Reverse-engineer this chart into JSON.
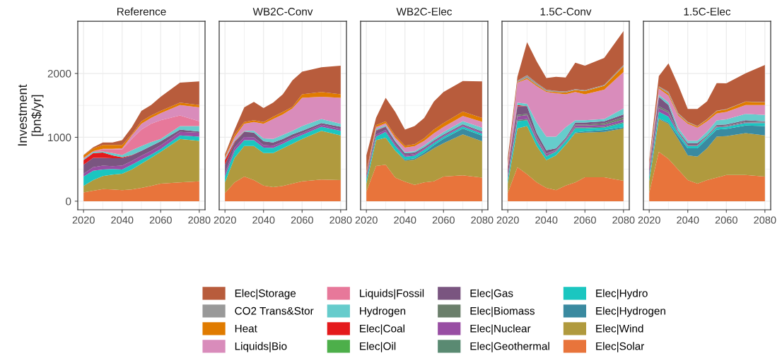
{
  "chart_data": [
    {
      "type": "area",
      "stacked": true,
      "title": "Reference",
      "ylabel": "Investment\n[bn$/yr]",
      "legend": "bottom",
      "grid": true,
      "xlim": [
        2017,
        2083
      ],
      "xticks": [
        2020,
        2040,
        2060,
        2080
      ],
      "ylim": [
        -134,
        2819
      ],
      "yticks": [
        0,
        1000,
        2000
      ],
      "x": [
        2020,
        2025,
        2030,
        2035,
        2040,
        2045,
        2050,
        2055,
        2060,
        2070,
        2080
      ],
      "series": [
        {
          "name": "Elec|Solar",
          "color": "#e8743b",
          "values": [
            136,
            165,
            190,
            184,
            173,
            184,
            210,
            240,
            276,
            294,
            312
          ]
        },
        {
          "name": "Elec|Wind",
          "color": "#b09a3e",
          "values": [
            103,
            166,
            203,
            231,
            257,
            312,
            378,
            440,
            496,
            680,
            633
          ]
        },
        {
          "name": "Elec|Hydro",
          "color": "#1bc6c0",
          "values": [
            147,
            147,
            103,
            89,
            66,
            74,
            63,
            48,
            44,
            55,
            66
          ]
        },
        {
          "name": "Elec|Nuclear",
          "color": "#984ea3",
          "values": [
            45,
            55,
            60,
            45,
            60,
            60,
            60,
            60,
            60,
            55,
            60
          ]
        },
        {
          "name": "Elec|Gas",
          "color": "#7a5580",
          "values": [
            139,
            147,
            124,
            124,
            117,
            87,
            79,
            76,
            62,
            37,
            21
          ]
        },
        {
          "name": "Elec|Oil",
          "color": "#4daf4a",
          "values": [
            null,
            null,
            null,
            null,
            null,
            null,
            null,
            null,
            null,
            null,
            null
          ]
        },
        {
          "name": "Elec|Coal",
          "color": "#e41a1c",
          "values": [
            73,
            74,
            81,
            44,
            15,
            5,
            0,
            0,
            0,
            0,
            0
          ]
        },
        {
          "name": "Hydrogen",
          "color": "#66cccc",
          "values": [
            19,
            18,
            18,
            37,
            36,
            76,
            74,
            62,
            36,
            55,
            84
          ]
        },
        {
          "name": "Liquids|Fossil",
          "color": "#e7789a",
          "values": [
            18,
            11,
            30,
            55,
            85,
            176,
            257,
            287,
            294,
            166,
            74
          ]
        },
        {
          "name": "Liquids|Bio",
          "color": "#d98cbb",
          "values": [
            0,
            0,
            11,
            11,
            18,
            55,
            92,
            92,
            111,
            165,
            221
          ]
        },
        {
          "name": "Heat",
          "color": "#e07b00",
          "values": [
            37,
            44,
            62,
            62,
            55,
            18,
            37,
            37,
            36,
            37,
            36
          ]
        },
        {
          "name": "Elec|Storage",
          "color": "#b85c3c",
          "values": [
            7,
            19,
            37,
            37,
            74,
            111,
            165,
            165,
            221,
            313,
            368
          ]
        }
      ]
    },
    {
      "type": "area",
      "stacked": true,
      "title": "WB2C-Conv",
      "tick_labels": "x",
      "legend": "bottom",
      "grid": true,
      "xlim": [
        2017,
        2083
      ],
      "xticks": [
        2020,
        2040,
        2060,
        2080
      ],
      "ylim": [
        -134,
        2819
      ],
      "yticks": [
        0,
        1000,
        2000
      ],
      "x": [
        2020,
        2025,
        2030,
        2035,
        2040,
        2045,
        2050,
        2055,
        2060,
        2070,
        2080
      ],
      "series": [
        {
          "name": "Elec|Solar",
          "color": "#e8743b",
          "values": [
            129,
            294,
            386,
            331,
            246,
            221,
            239,
            276,
            312,
            338,
            331
          ]
        },
        {
          "name": "Elec|Wind",
          "color": "#b09a3e",
          "values": [
            165,
            386,
            478,
            533,
            508,
            533,
            588,
            625,
            662,
            765,
            698
          ]
        },
        {
          "name": "Elec|Hydro",
          "color": "#1bc6c0",
          "values": [
            92,
            110,
            92,
            92,
            84,
            81,
            74,
            73,
            63,
            62,
            74
          ]
        },
        {
          "name": "Elec|Nuclear",
          "color": "#984ea3",
          "values": [
            50,
            50,
            50,
            45,
            40,
            35,
            30,
            30,
            30,
            30,
            30
          ]
        },
        {
          "name": "Elec|Gas",
          "color": "#7a5580",
          "values": [
            134,
            79,
            79,
            73,
            60,
            49,
            43,
            44,
            36,
            29,
            32
          ]
        },
        {
          "name": "Elec|Coal",
          "color": "#e41a1c",
          "values": [
            73,
            18,
            5,
            0,
            0,
            0,
            0,
            0,
            0,
            0,
            0
          ]
        },
        {
          "name": "Hydrogen",
          "color": "#66cccc",
          "values": [
            18,
            19,
            13,
            29,
            44,
            55,
            63,
            55,
            73,
            63,
            48
          ]
        },
        {
          "name": "Liquids|Bio",
          "color": "#d98cbb",
          "values": [
            19,
            48,
            110,
            136,
            231,
            313,
            323,
            349,
            442,
            349,
            405
          ]
        },
        {
          "name": "Heat",
          "color": "#e07b00",
          "values": [
            19,
            44,
            26,
            29,
            26,
            37,
            37,
            26,
            55,
            74,
            55
          ]
        },
        {
          "name": "Elec|Storage",
          "color": "#b85c3c",
          "values": [
            36,
            73,
            232,
            287,
            221,
            220,
            276,
            415,
            356,
            386,
            448
          ]
        }
      ]
    },
    {
      "type": "area",
      "stacked": true,
      "title": "WB2C-Elec",
      "tick_labels": "x",
      "legend": "bottom",
      "grid": true,
      "xlim": [
        2017,
        2083
      ],
      "xticks": [
        2020,
        2040,
        2060,
        2080
      ],
      "ylim": [
        -134,
        2819
      ],
      "yticks": [
        0,
        1000,
        2000
      ],
      "x": [
        2020,
        2025,
        2030,
        2035,
        2040,
        2045,
        2050,
        2055,
        2060,
        2070,
        2080
      ],
      "series": [
        {
          "name": "Elec|Solar",
          "color": "#e8743b",
          "values": [
            150,
            551,
            570,
            368,
            305,
            257,
            294,
            312,
            386,
            404,
            368
          ]
        },
        {
          "name": "Elec|Wind",
          "color": "#b09a3e",
          "values": [
            126,
            405,
            423,
            422,
            331,
            394,
            441,
            515,
            522,
            644,
            570
          ]
        },
        {
          "name": "Elec|Hydrogen",
          "color": "#3a8aa0",
          "values": [
            0,
            0,
            0,
            0,
            15,
            20,
            30,
            50,
            70,
            90,
            90
          ]
        },
        {
          "name": "Elec|Hydro",
          "color": "#1bc6c0",
          "values": [
            73,
            55,
            92,
            74,
            44,
            40,
            40,
            35,
            30,
            30,
            30
          ]
        },
        {
          "name": "Elec|Nuclear",
          "color": "#984ea3",
          "values": [
            30,
            30,
            30,
            30,
            25,
            25,
            20,
            20,
            20,
            20,
            20
          ]
        },
        {
          "name": "Elec|Gas",
          "color": "#7a5580",
          "values": [
            30,
            60,
            50,
            40,
            30,
            25,
            20,
            20,
            15,
            15,
            15
          ]
        },
        {
          "name": "Elec|Coal",
          "color": "#e41a1c",
          "values": [
            30,
            10,
            5,
            0,
            0,
            0,
            0,
            0,
            0,
            0,
            0
          ]
        },
        {
          "name": "Hydrogen",
          "color": "#66cccc",
          "values": [
            10,
            20,
            20,
            20,
            20,
            20,
            30,
            30,
            40,
            50,
            60
          ]
        },
        {
          "name": "Liquids|Bio",
          "color": "#d98cbb",
          "values": [
            0,
            30,
            30,
            40,
            70,
            80,
            70,
            80,
            80,
            80,
            90
          ]
        },
        {
          "name": "Heat",
          "color": "#e07b00",
          "values": [
            10,
            30,
            30,
            30,
            30,
            30,
            40,
            60,
            60,
            70,
            60
          ]
        },
        {
          "name": "Elec|Storage",
          "color": "#b85c3c",
          "values": [
            258,
            114,
            368,
            373,
            251,
            285,
            320,
            440,
            487,
            479,
            572
          ]
        }
      ]
    },
    {
      "type": "area",
      "stacked": true,
      "title": "1.5C-Conv",
      "tick_labels": "x",
      "legend": "bottom",
      "grid": true,
      "xlim": [
        2017,
        2083
      ],
      "xticks": [
        2020,
        2040,
        2060,
        2080
      ],
      "ylim": [
        -134,
        2819
      ],
      "yticks": [
        0,
        1000,
        2000
      ],
      "x": [
        2020,
        2025,
        2030,
        2035,
        2040,
        2045,
        2050,
        2055,
        2060,
        2070,
        2080
      ],
      "series": [
        {
          "name": "Elec|Solar",
          "color": "#e8743b",
          "values": [
            130,
            533,
            423,
            294,
            210,
            173,
            246,
            294,
            375,
            375,
            320
          ]
        },
        {
          "name": "Elec|Wind",
          "color": "#b09a3e",
          "values": [
            146,
            607,
            753,
            570,
            433,
            544,
            636,
            772,
            699,
            710,
            820
          ]
        },
        {
          "name": "Elec|Hydrogen",
          "color": "#3a8aa0",
          "values": [
            0,
            0,
            0,
            0,
            0,
            0,
            5,
            10,
            20,
            30,
            20
          ]
        },
        {
          "name": "Elec|Hydro",
          "color": "#1bc6c0",
          "values": [
            73,
            110,
            92,
            74,
            56,
            55,
            51,
            64,
            46,
            36,
            64
          ]
        },
        {
          "name": "Elec|Geothermal",
          "color": "#5a8a72",
          "values": [
            10,
            20,
            20,
            15,
            10,
            10,
            10,
            15,
            15,
            15,
            15
          ]
        },
        {
          "name": "Elec|Nuclear",
          "color": "#984ea3",
          "values": [
            40,
            60,
            60,
            40,
            30,
            15,
            15,
            30,
            30,
            30,
            40
          ]
        },
        {
          "name": "Elec|Biomass",
          "color": "#6b7f6b",
          "values": [
            5,
            20,
            20,
            15,
            5,
            5,
            5,
            15,
            15,
            25,
            35
          ]
        },
        {
          "name": "Elec|Gas",
          "color": "#7a5580",
          "values": [
            89,
            137,
            121,
            58,
            54,
            25,
            24,
            32,
            32,
            29,
            46
          ]
        },
        {
          "name": "Elec|Coal",
          "color": "#e41a1c",
          "values": [
            40,
            20,
            0,
            0,
            0,
            0,
            0,
            0,
            0,
            0,
            0
          ]
        },
        {
          "name": "Hydrogen",
          "color": "#66cccc",
          "values": [
            10,
            37,
            37,
            166,
            213,
            184,
            166,
            36,
            36,
            37,
            92
          ]
        },
        {
          "name": "Liquids|Bio",
          "color": "#d98cbb",
          "values": [
            27,
            313,
            386,
            569,
            699,
            680,
            515,
            442,
            405,
            460,
            570
          ]
        },
        {
          "name": "Heat",
          "color": "#e07b00",
          "values": [
            5,
            10,
            20,
            20,
            15,
            20,
            30,
            30,
            50,
            60,
            90
          ]
        },
        {
          "name": "CO2 Trans&Stor",
          "color": "#999999",
          "values": [
            5,
            20,
            40,
            30,
            20,
            15,
            15,
            15,
            15,
            15,
            20
          ]
        },
        {
          "name": "Elec|Storage",
          "color": "#b85c3c",
          "values": [
            100,
            62,
            517,
            337,
            185,
            223,
            220,
            414,
            383,
            421,
            533
          ]
        }
      ]
    },
    {
      "type": "area",
      "stacked": true,
      "title": "1.5C-Elec",
      "tick_labels": "x",
      "legend": "bottom",
      "grid": true,
      "xlim": [
        2017,
        2083
      ],
      "xticks": [
        2020,
        2040,
        2060,
        2080
      ],
      "ylim": [
        -134,
        2819
      ],
      "yticks": [
        0,
        1000,
        2000
      ],
      "x": [
        2020,
        2025,
        2030,
        2035,
        2040,
        2045,
        2050,
        2055,
        2060,
        2070,
        2080
      ],
      "series": [
        {
          "name": "Elec|Solar",
          "color": "#e8743b",
          "values": [
            130,
            772,
            662,
            496,
            331,
            276,
            331,
            368,
            412,
            412,
            386
          ]
        },
        {
          "name": "Elec|Wind",
          "color": "#b09a3e",
          "values": [
            182,
            515,
            551,
            478,
            386,
            423,
            496,
            643,
            606,
            654,
            643
          ]
        },
        {
          "name": "Elec|Hydrogen",
          "color": "#3a8aa0",
          "values": [
            0,
            10,
            20,
            50,
            110,
            128,
            147,
            110,
            114,
            118,
            147
          ]
        },
        {
          "name": "Elec|Hydro",
          "color": "#1bc6c0",
          "values": [
            74,
            103,
            91,
            40,
            37,
            37,
            30,
            37,
            33,
            40,
            48
          ]
        },
        {
          "name": "Elec|Nuclear",
          "color": "#984ea3",
          "values": [
            40,
            60,
            60,
            10,
            10,
            10,
            5,
            10,
            10,
            10,
            5
          ]
        },
        {
          "name": "Elec|Biomass",
          "color": "#6b7f6b",
          "values": [
            15,
            25,
            25,
            10,
            10,
            10,
            10,
            10,
            10,
            15,
            10
          ]
        },
        {
          "name": "Elec|Gas",
          "color": "#7a5580",
          "values": [
            62,
            151,
            98,
            19,
            24,
            24,
            10,
            17,
            17,
            19,
            11
          ]
        },
        {
          "name": "Elec|Coal",
          "color": "#e41a1c",
          "values": [
            30,
            0,
            0,
            0,
            0,
            0,
            0,
            0,
            0,
            0,
            0
          ]
        },
        {
          "name": "Hydrogen",
          "color": "#66cccc",
          "values": [
            10,
            30,
            40,
            50,
            40,
            40,
            60,
            70,
            80,
            100,
            100
          ]
        },
        {
          "name": "Liquids|Bio",
          "color": "#d98cbb",
          "values": [
            27,
            99,
            107,
            189,
            265,
            203,
            161,
            108,
            115,
            139,
            157
          ]
        },
        {
          "name": "Heat",
          "color": "#e07b00",
          "values": [
            10,
            20,
            30,
            20,
            20,
            20,
            30,
            40,
            40,
            50,
            40
          ]
        },
        {
          "name": "CO2 Trans&Stor",
          "color": "#999999",
          "values": [
            5,
            15,
            30,
            20,
            10,
            5,
            5,
            5,
            5,
            5,
            5
          ]
        },
        {
          "name": "Elec|Storage",
          "color": "#b85c3c",
          "values": [
            58,
            160,
            444,
            438,
            202,
            269,
            278,
            431,
            404,
            442,
            580
          ]
        }
      ]
    }
  ]
}
